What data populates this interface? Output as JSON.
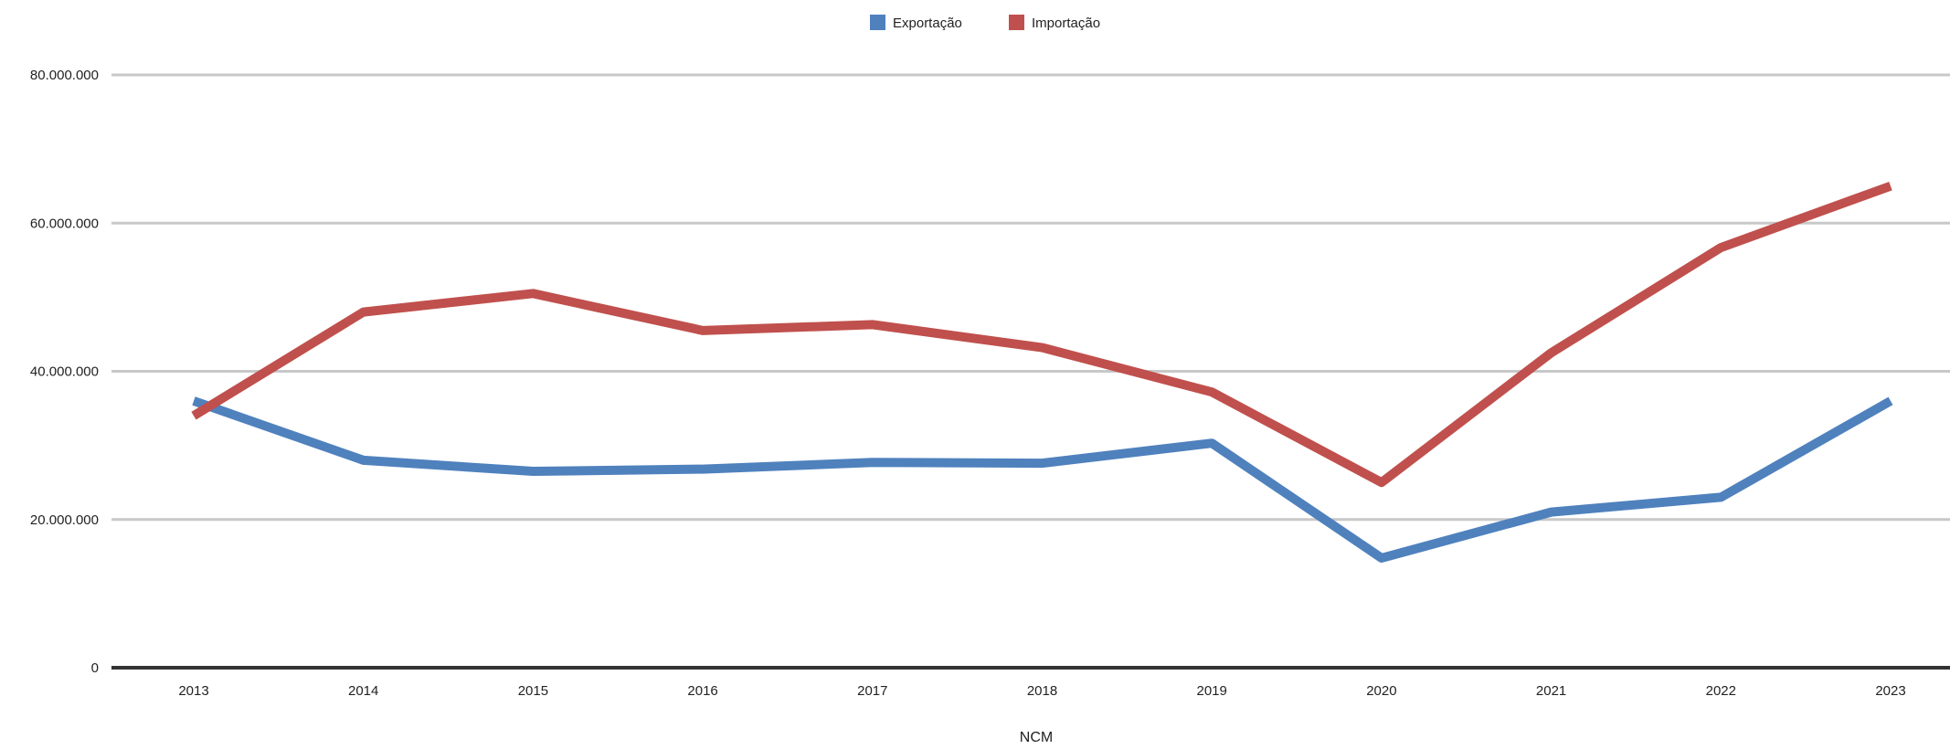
{
  "chart_data": {
    "type": "line",
    "title": "",
    "xlabel": "NCM",
    "ylabel": "",
    "x": [
      "2013",
      "2014",
      "2015",
      "2016",
      "2017",
      "2018",
      "2019",
      "2020",
      "2021",
      "2022",
      "2023"
    ],
    "series": [
      {
        "name": "Exportação",
        "color": "#4f81bd",
        "values": [
          36000000,
          28000000,
          26500000,
          26800000,
          27700000,
          27600000,
          30300000,
          14800000,
          21000000,
          23000000,
          36000000
        ]
      },
      {
        "name": "Importação",
        "color": "#c0504d",
        "values": [
          34000000,
          48000000,
          50500000,
          45500000,
          46300000,
          43200000,
          37200000,
          25000000,
          42500000,
          56700000,
          65000000
        ]
      }
    ],
    "ylim": [
      0,
      80000000
    ],
    "yticks": [
      0,
      20000000,
      40000000,
      60000000,
      80000000
    ],
    "ytick_labels": [
      "0",
      "20.000.000",
      "40.000.000",
      "60.000.000",
      "80.000.000"
    ],
    "grid": true,
    "legend_position": "top-center"
  }
}
